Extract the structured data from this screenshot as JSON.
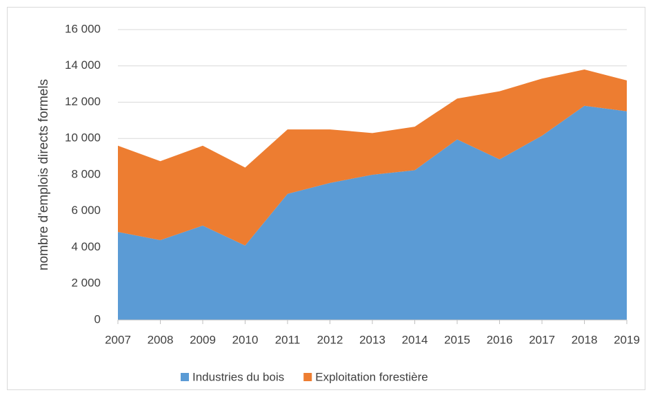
{
  "chart_data": {
    "type": "stacked_area",
    "y_axis_label": "nombre d'emplois directs formels",
    "categories": [
      "2007",
      "2008",
      "2009",
      "2010",
      "2011",
      "2012",
      "2013",
      "2014",
      "2015",
      "2016",
      "2017",
      "2018",
      "2019"
    ],
    "series": [
      {
        "name": "Industries du bois",
        "color": "#5b9bd5",
        "values": [
          4850,
          4400,
          5200,
          4100,
          6950,
          7550,
          8000,
          8250,
          9950,
          8850,
          10150,
          11800,
          11500
        ]
      },
      {
        "name": "Exploitation forestière",
        "color": "#ed7d31",
        "values": [
          4750,
          4350,
          4400,
          4300,
          3550,
          2950,
          2300,
          2400,
          2250,
          3750,
          3150,
          2000,
          1700
        ]
      }
    ],
    "ylim": [
      0,
      16000
    ],
    "yticks": [
      0,
      {
        "value": 2000,
        "label": "2 000"
      },
      {
        "value": 4000,
        "label": "4 000"
      },
      {
        "value": 6000,
        "label": "6 000"
      },
      {
        "value": 8000,
        "label": "8 000"
      },
      {
        "value": 10000,
        "label": "10 000"
      },
      {
        "value": 12000,
        "label": "12 000"
      },
      {
        "value": 14000,
        "label": "14 000"
      },
      {
        "value": 16000,
        "label": "16 000"
      }
    ],
    "grid": true,
    "legend": "bottom"
  }
}
